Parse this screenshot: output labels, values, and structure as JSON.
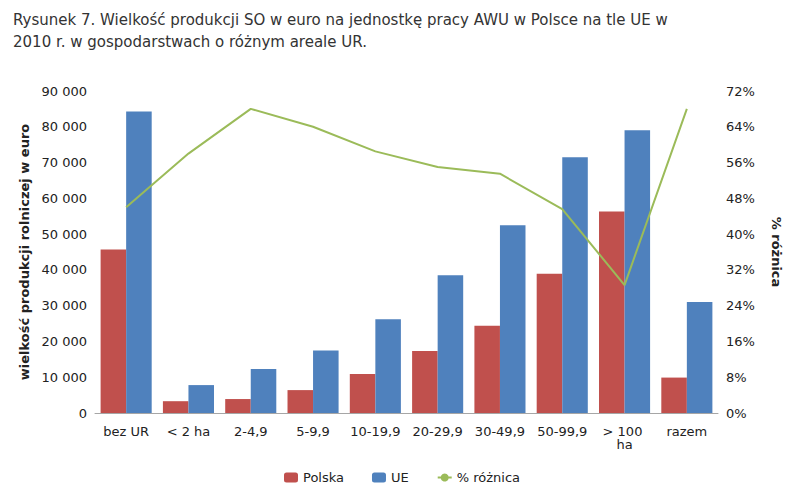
{
  "chart_data": {
    "type": "bar",
    "title": "Rysunek 7. Wielkość produkcji SO w euro na jednostkę pracy AWU w Polsce na tle UE w 2010 r. w gospodarstwach o różnym areale UR.",
    "y_label": "wielkość produkcji rolniczej w euro",
    "y2_label": "% różnica",
    "categories": [
      "bez UR",
      "< 2 ha",
      "2-4,9",
      "5-9,9",
      "10-19,9",
      "20-29,9",
      "30-49,9",
      "50-99,9",
      "> 100 ha",
      "razem"
    ],
    "series": [
      {
        "name": "Polska",
        "type": "bar",
        "color": "#c0504d",
        "values": [
          45700,
          3300,
          3900,
          6400,
          10900,
          17300,
          24400,
          38900,
          56300,
          9900
        ]
      },
      {
        "name": "UE",
        "type": "bar",
        "color": "#4f81bd",
        "values": [
          84300,
          7800,
          12300,
          17500,
          26200,
          38500,
          52500,
          71500,
          79000,
          31000
        ]
      },
      {
        "name": "% różnica",
        "type": "line",
        "color": "#9bbb59",
        "axis": "y2",
        "marker": "none",
        "values": [
          46,
          58,
          68,
          64,
          58.5,
          55,
          53.5,
          45.6,
          28.6,
          68
        ]
      }
    ],
    "ylim": [
      0,
      90000
    ],
    "yticks": [
      0,
      {
        "value": 10000,
        "label": "10 000"
      },
      {
        "value": 20000,
        "label": "20 000"
      },
      {
        "value": 30000,
        "label": "30 000"
      },
      {
        "value": 40000,
        "label": "40 000"
      },
      {
        "value": 50000,
        "label": "50 000"
      },
      {
        "value": 60000,
        "label": "60 000"
      },
      {
        "value": 70000,
        "label": "70 000"
      },
      {
        "value": 80000,
        "label": "80 000"
      },
      {
        "value": 90000,
        "label": "90 000"
      }
    ],
    "y2lim": [
      0,
      72
    ],
    "y2ticks": [
      {
        "value": 0,
        "label": "0%"
      },
      {
        "value": 8,
        "label": "8%"
      },
      {
        "value": 16,
        "label": "16%"
      },
      {
        "value": 24,
        "label": "24%"
      },
      {
        "value": 32,
        "label": "32%"
      },
      {
        "value": 40,
        "label": "40%"
      },
      {
        "value": 48,
        "label": "48%"
      },
      {
        "value": 56,
        "label": "56%"
      },
      {
        "value": 64,
        "label": "64%"
      },
      {
        "value": 72,
        "label": "72%"
      }
    ],
    "grid": false,
    "legend": "bottom"
  }
}
